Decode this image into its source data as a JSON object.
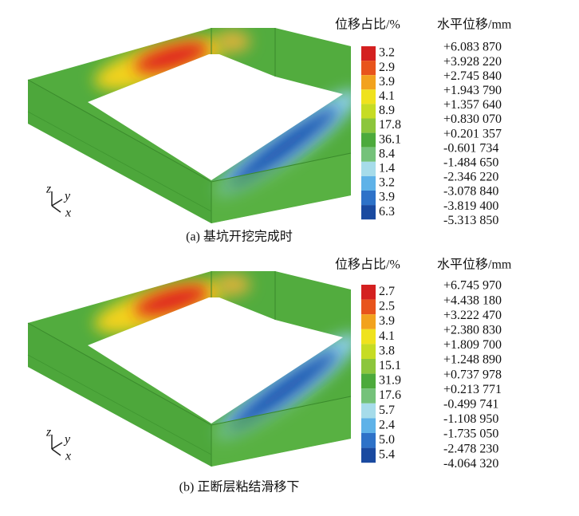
{
  "panels": [
    {
      "caption": "(a) 基坑开挖完成时",
      "legend_title": "位移占比/%",
      "value_title": "水平位移/mm",
      "axis_labels": [
        "z",
        "y",
        "x"
      ],
      "percentages": [
        "3.2",
        "2.9",
        "3.9",
        "4.1",
        "8.9",
        "17.8",
        "36.1",
        "8.4",
        "1.4",
        "3.2",
        "3.9",
        "6.3"
      ],
      "colors": [
        "#d42020",
        "#e8541c",
        "#f2a21e",
        "#efe21e",
        "#c6dc24",
        "#8cc63c",
        "#4caa3c",
        "#74c27a",
        "#a6dcea",
        "#5eb2e8",
        "#2e72c8",
        "#1a4aa0"
      ],
      "displacements": [
        "+6.083 870",
        "+3.928 220",
        "+2.745 840",
        "+1.943 790",
        "+1.357 640",
        "+0.830 070",
        "+0.201 357",
        "-0.601 734",
        "-1.484 650",
        "-2.346 220",
        "-3.078 840",
        "-3.819 400",
        "-5.313 850"
      ]
    },
    {
      "caption": "(b) 正断层粘结滑移下",
      "legend_title": "位移占比/%",
      "value_title": "水平位移/mm",
      "axis_labels": [
        "z",
        "y",
        "x"
      ],
      "percentages": [
        "2.7",
        "2.5",
        "3.9",
        "4.1",
        "3.8",
        "15.1",
        "31.9",
        "17.6",
        "5.7",
        "2.4",
        "5.0",
        "5.4"
      ],
      "colors": [
        "#d42020",
        "#e8541c",
        "#f2a21e",
        "#efe21e",
        "#c6dc24",
        "#8cc63c",
        "#4caa3c",
        "#74c27a",
        "#a6dcea",
        "#5eb2e8",
        "#2e72c8",
        "#1a4aa0"
      ],
      "displacements": [
        "+6.745 970",
        "+4.438 180",
        "+3.222 470",
        "+2.380 830",
        "+1.809 700",
        "+1.248 890",
        "+0.737 978",
        "+0.213 771",
        "-0.499 741",
        "-1.108 950",
        "-1.735 050",
        "-2.478 230",
        "-4.064 320"
      ]
    }
  ]
}
